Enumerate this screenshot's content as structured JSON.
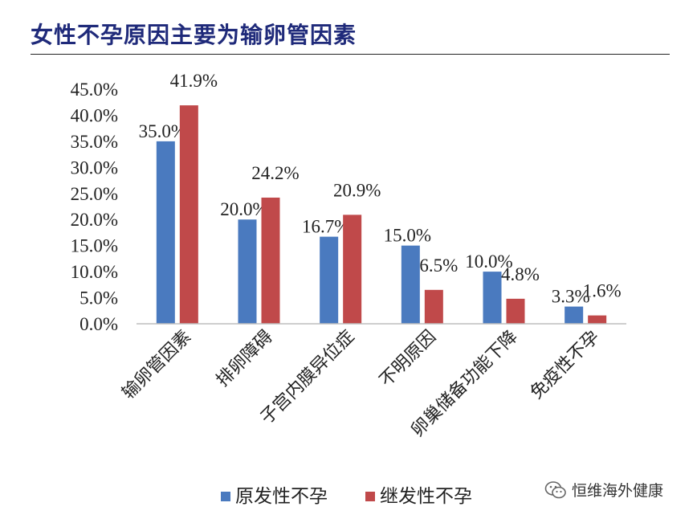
{
  "page": {
    "title": "女性不孕原因主要为输卵管因素"
  },
  "watermark": {
    "text": "恒维海外健康",
    "icon": "wechat-icon"
  },
  "chart_data": {
    "type": "bar",
    "categories": [
      "输卵管因素",
      "排卵障碍",
      "子宫内膜异位症",
      "不明原因",
      "卵巢储备功能下降",
      "免疫性不孕"
    ],
    "series": [
      {
        "name": "原发性不孕",
        "color": "#4a7abf",
        "values": [
          35.0,
          20.0,
          16.7,
          15.0,
          10.0,
          3.3
        ],
        "labels": [
          "35.0%",
          "20.0%",
          "16.7%",
          "15.0%",
          "10.0%",
          "3.3%"
        ]
      },
      {
        "name": "继发性不孕",
        "color": "#c0494a",
        "values": [
          41.9,
          24.2,
          20.9,
          6.5,
          4.8,
          1.6
        ],
        "labels": [
          "41.9%",
          "24.2%",
          "20.9%",
          "6.5%",
          "4.8%",
          "1.6%"
        ]
      }
    ],
    "ylim": [
      0,
      45
    ],
    "yticks": [
      0,
      5,
      10,
      15,
      20,
      25,
      30,
      35,
      40,
      45
    ],
    "ytick_labels": [
      "0.0%",
      "5.0%",
      "10.0%",
      "15.0%",
      "20.0%",
      "25.0%",
      "30.0%",
      "35.0%",
      "40.0%",
      "45.0%"
    ],
    "grid": false,
    "legend_position": "bottom"
  }
}
